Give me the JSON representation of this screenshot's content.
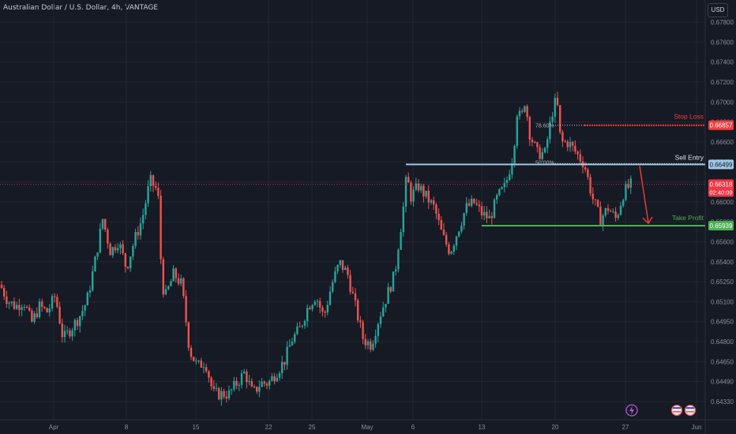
{
  "title": "Australian Dollar / U.S. Dollar, 4h, VANTAGE",
  "currency": "USD",
  "colors": {
    "background": "#161a25",
    "grid": "#232734",
    "up": "#26a69a",
    "down": "#ef5350",
    "sell": "#9fc7e6",
    "stop": "#ef3d3d",
    "profit": "#4caf50",
    "current": "#f23645",
    "axis_text": "#8a8f9c"
  },
  "chart_data": {
    "type": "candlestick",
    "y_ticks": [
      "0.67800",
      "0.67600",
      "0.67400",
      "0.67200",
      "0.67000",
      "0.66800",
      "0.66600",
      "0.66400",
      "0.66200",
      "0.66000",
      "0.65800",
      "0.65600",
      "0.65400",
      "0.65250",
      "0.65100",
      "0.64950",
      "0.64800",
      "0.64650",
      "0.64490",
      "0.64330"
    ],
    "x_ticks": [
      "Apr",
      "8",
      "15",
      "22",
      "25",
      "May",
      "6",
      "13",
      "20",
      "27",
      "Jun"
    ],
    "price_labels": [
      {
        "name": "Stop Loss",
        "value": "0.66857",
        "kind": "stop"
      },
      {
        "name": "Sell Entry",
        "value": "0.66499",
        "kind": "sell"
      },
      {
        "name": "Current",
        "value": "0.66318",
        "countdown": "02:40:09",
        "kind": "current"
      },
      {
        "name": "Take Profit",
        "value": "0.65939",
        "kind": "profit"
      }
    ],
    "fib_levels": [
      {
        "label": "78.60%",
        "value": 0.66857
      },
      {
        "label": "50.00%",
        "value": 0.66499
      }
    ],
    "series_trace": [
      [
        0,
        0.654
      ],
      [
        10,
        0.6525
      ],
      [
        20,
        0.652
      ],
      [
        30,
        0.6525
      ],
      [
        40,
        0.6505
      ],
      [
        50,
        0.652
      ],
      [
        60,
        0.6515
      ],
      [
        70,
        0.653
      ],
      [
        80,
        0.649
      ],
      [
        90,
        0.65
      ],
      [
        100,
        0.651
      ],
      [
        110,
        0.6525
      ],
      [
        120,
        0.656
      ],
      [
        130,
        0.66
      ],
      [
        140,
        0.657
      ],
      [
        150,
        0.658
      ],
      [
        160,
        0.6555
      ],
      [
        170,
        0.658
      ],
      [
        180,
        0.66
      ],
      [
        190,
        0.6635
      ],
      [
        200,
        0.6625
      ],
      [
        205,
        0.654
      ],
      [
        210,
        0.653
      ],
      [
        220,
        0.655
      ],
      [
        230,
        0.654
      ],
      [
        240,
        0.648
      ],
      [
        250,
        0.6465
      ],
      [
        260,
        0.647
      ],
      [
        270,
        0.644
      ],
      [
        280,
        0.644
      ],
      [
        290,
        0.644
      ],
      [
        300,
        0.645
      ],
      [
        310,
        0.646
      ],
      [
        320,
        0.644
      ],
      [
        330,
        0.645
      ],
      [
        340,
        0.645
      ],
      [
        350,
        0.646
      ],
      [
        360,
        0.647
      ],
      [
        370,
        0.649
      ],
      [
        380,
        0.65
      ],
      [
        390,
        0.652
      ],
      [
        400,
        0.653
      ],
      [
        410,
        0.651
      ],
      [
        420,
        0.654
      ],
      [
        430,
        0.656
      ],
      [
        440,
        0.655
      ],
      [
        450,
        0.652
      ],
      [
        460,
        0.649
      ],
      [
        470,
        0.6485
      ],
      [
        480,
        0.651
      ],
      [
        490,
        0.653
      ],
      [
        500,
        0.655
      ],
      [
        505,
        0.658
      ],
      [
        510,
        0.6605
      ],
      [
        515,
        0.664
      ],
      [
        520,
        0.662
      ],
      [
        530,
        0.663
      ],
      [
        540,
        0.662
      ],
      [
        550,
        0.661
      ],
      [
        560,
        0.6585
      ],
      [
        570,
        0.657
      ],
      [
        580,
        0.659
      ],
      [
        590,
        0.661
      ],
      [
        600,
        0.6615
      ],
      [
        610,
        0.6605
      ],
      [
        620,
        0.66
      ],
      [
        630,
        0.662
      ],
      [
        640,
        0.663
      ],
      [
        650,
        0.666
      ],
      [
        655,
        0.67
      ],
      [
        660,
        0.669
      ],
      [
        665,
        0.671
      ],
      [
        670,
        0.668
      ],
      [
        680,
        0.666
      ],
      [
        690,
        0.666
      ],
      [
        700,
        0.67
      ],
      [
        705,
        0.671
      ],
      [
        710,
        0.667
      ],
      [
        720,
        0.667
      ],
      [
        730,
        0.666
      ],
      [
        740,
        0.665
      ],
      [
        750,
        0.662
      ],
      [
        760,
        0.66
      ],
      [
        770,
        0.661
      ],
      [
        780,
        0.66
      ],
      [
        790,
        0.6625
      ],
      [
        800,
        0.6632
      ]
    ],
    "annotations": [
      "Stop Loss",
      "Sell Entry",
      "Take Profit"
    ]
  }
}
